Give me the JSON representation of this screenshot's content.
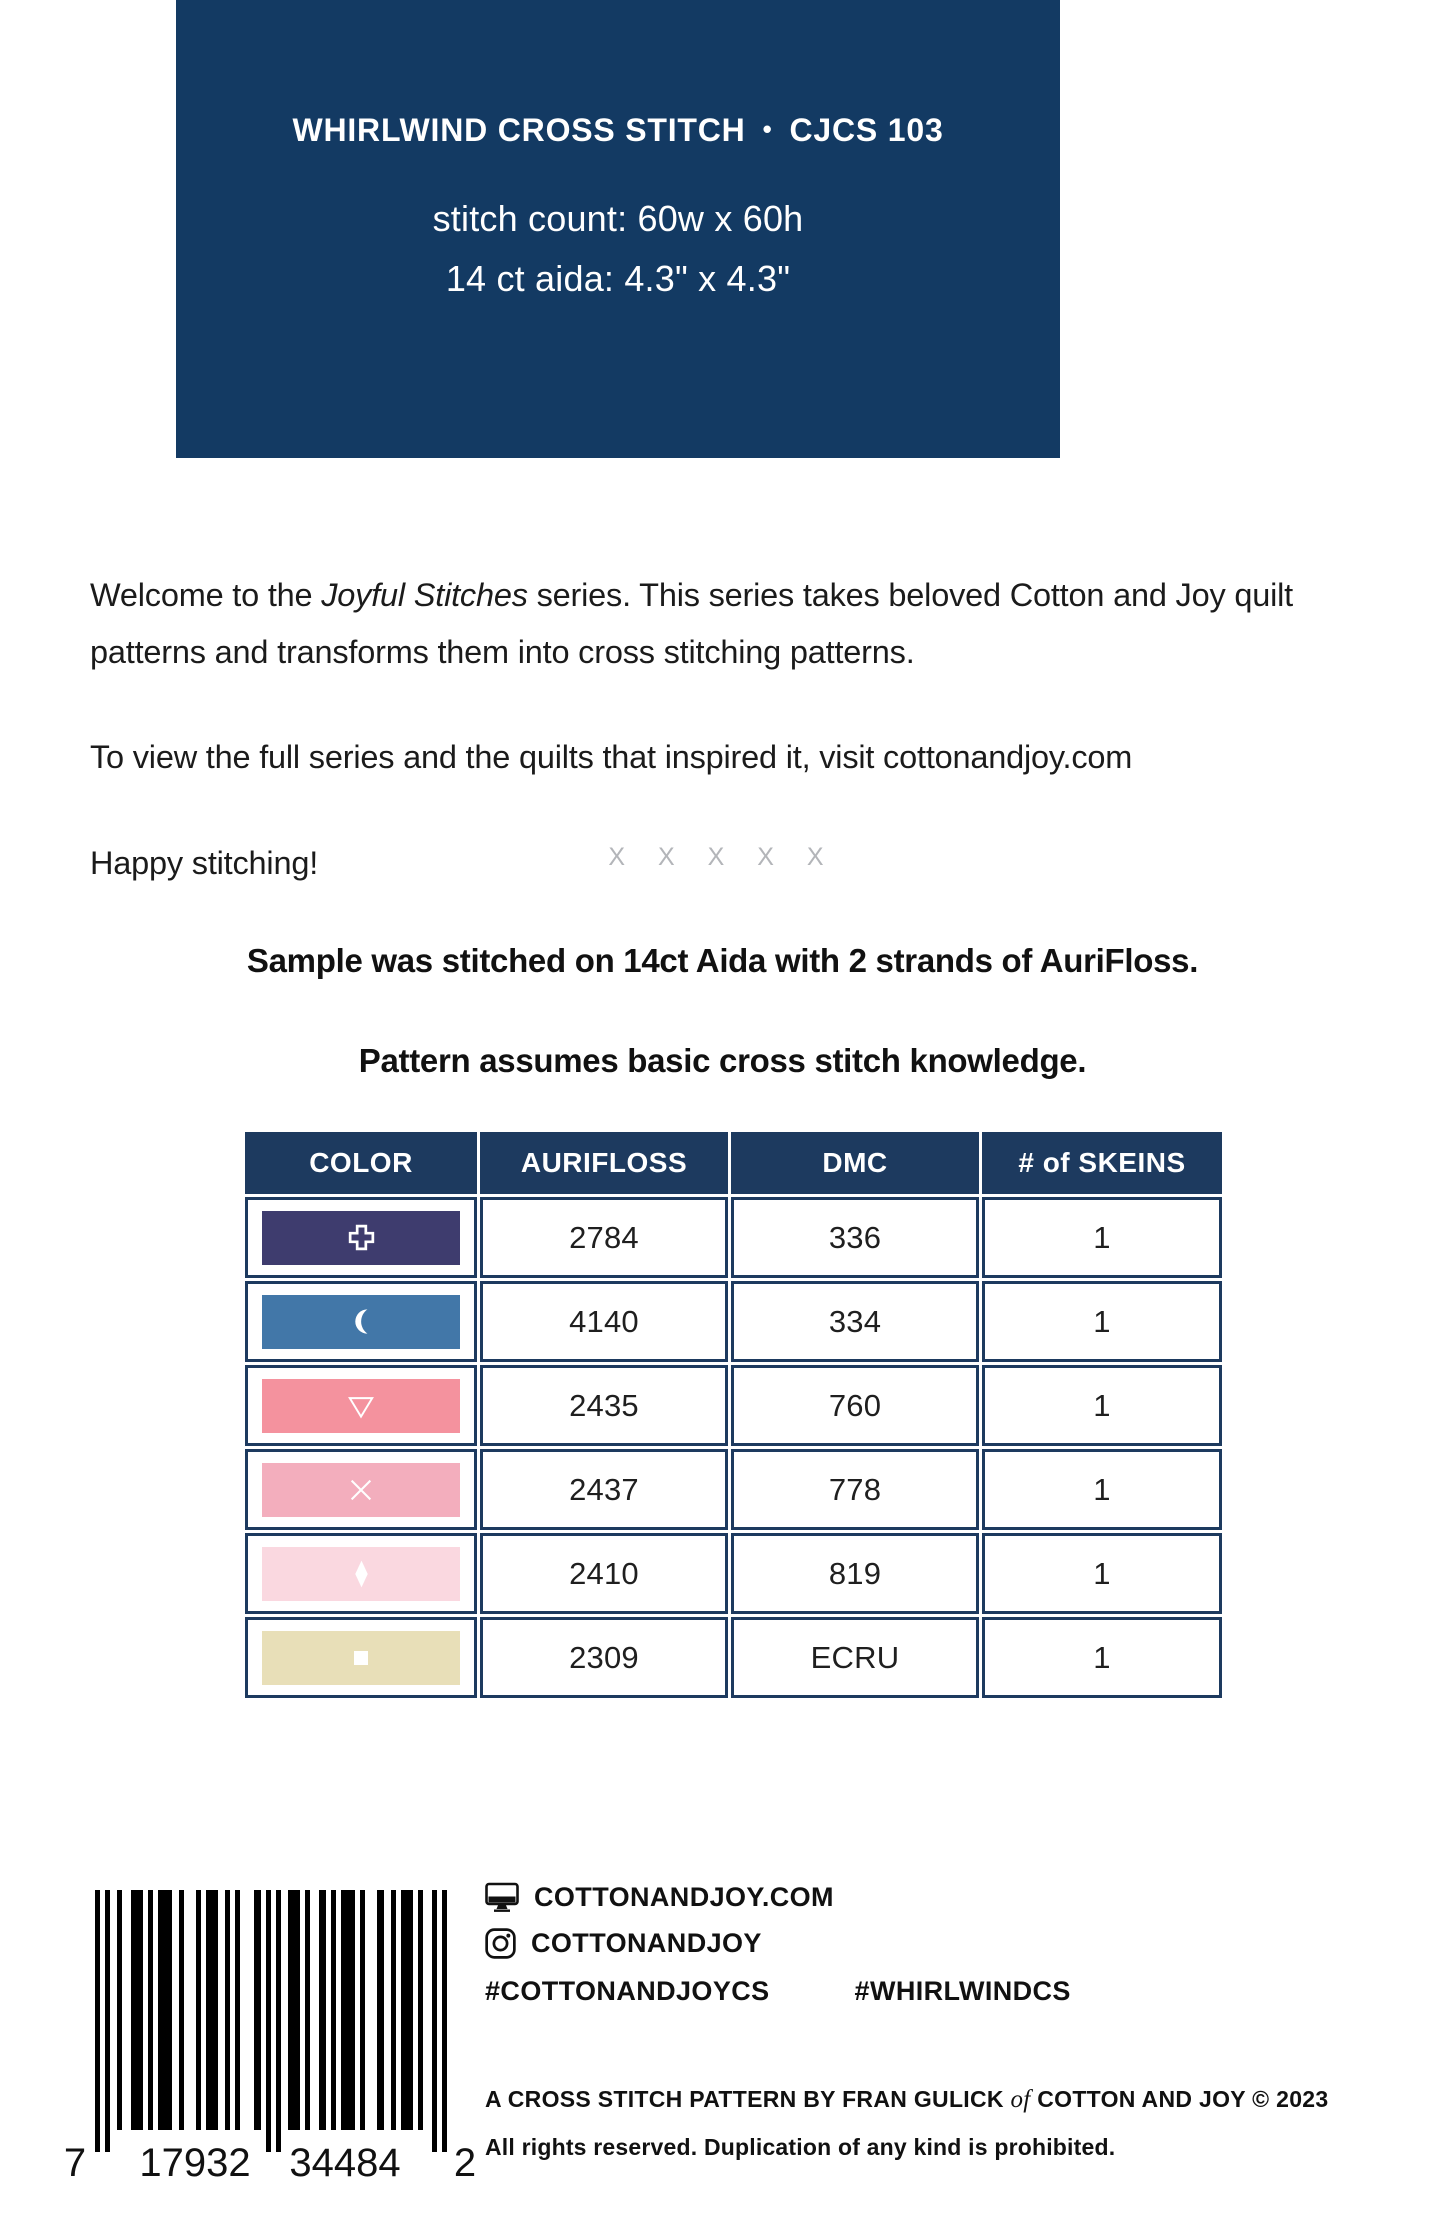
{
  "colors": {
    "navy": "#133A63",
    "table_navy": "#1D3A5F",
    "divider_gray": "#B3B5B9"
  },
  "hero": {
    "title": "WHIRLWIND CROSS STITCH",
    "separator": "•",
    "code": "CJCS 103",
    "stitch_count": "stitch count: 60w x 60h",
    "aida": "14 ct aida: 4.3\" x 4.3\""
  },
  "intro": {
    "p1_before": "Welcome to the ",
    "p1_italic": "Joyful Stitches",
    "p1_line1_after": " series. This series takes beloved Cotton and Joy quilt",
    "p1_line2": "patterns and transforms them into cross stitching patterns.",
    "p2": "To view the full series and the quilts that inspired it, visit cottonandjoy.com",
    "p3": "Happy stitching!"
  },
  "divider": "X X X X X",
  "notes": {
    "line1": "Sample was stitched on 14ct Aida with 2 strands of AuriFloss.",
    "line2": "Pattern assumes basic cross stitch knowledge."
  },
  "table": {
    "headers": [
      "COLOR",
      "AURIFLOSS",
      "DMC",
      "# of SKEINS"
    ],
    "rows": [
      {
        "symbol": "open-cross",
        "swatch": "#3E3C6E",
        "aurifloss": "2784",
        "dmc": "336",
        "skeins": "1"
      },
      {
        "symbol": "crescent",
        "swatch": "#4277A8",
        "aurifloss": "4140",
        "dmc": "334",
        "skeins": "1"
      },
      {
        "symbol": "open-triangle-down",
        "swatch": "#F4929E",
        "aurifloss": "2435",
        "dmc": "760",
        "skeins": "1"
      },
      {
        "symbol": "x-mark",
        "swatch": "#F3AEBD",
        "aurifloss": "2437",
        "dmc": "778",
        "skeins": "1"
      },
      {
        "symbol": "diamond",
        "swatch": "#FAD8E0",
        "aurifloss": "2410",
        "dmc": "819",
        "skeins": "1"
      },
      {
        "symbol": "square",
        "swatch": "#E8DFB8",
        "aurifloss": "2309",
        "dmc": "ECRU",
        "skeins": "1"
      }
    ]
  },
  "footer": {
    "website": "COTTONANDJOY.COM",
    "instagram": "COTTONANDJOY",
    "hashtag1": "#COTTONANDJOYCS",
    "hashtag2": "#WHIRLWINDCS",
    "credit_before": "A CROSS STITCH PATTERN BY FRAN GULICK ",
    "credit_of": "of",
    "credit_after": " COTTON AND JOY © 2023",
    "rights": "All rights reserved. Duplication of any kind is prohibited.",
    "barcode": {
      "d1": "7",
      "d2": "17932",
      "d3": "34484",
      "d4": "2"
    }
  }
}
